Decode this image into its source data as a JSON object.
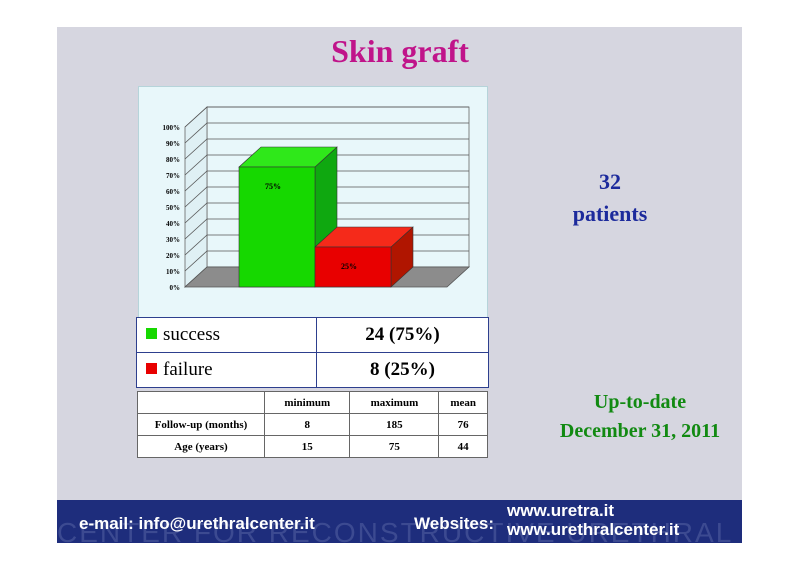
{
  "slide": {
    "title": "Skin graft",
    "patients_line1": "32",
    "patients_line2": "patients",
    "update_line1": "Up-to-date",
    "update_line2": "December 31, 2011"
  },
  "legend": [
    {
      "label": "success",
      "value": "24 (75%)",
      "color": "#16d800"
    },
    {
      "label": "failure",
      "value": "8 (25%)",
      "color": "#e80000"
    }
  ],
  "stats": {
    "headers": [
      "minimum",
      "maximum",
      "mean"
    ],
    "rows": [
      {
        "label": "Follow-up (months)",
        "values": [
          "8",
          "185",
          "76"
        ]
      },
      {
        "label": "Age (years)",
        "values": [
          "15",
          "75",
          "44"
        ]
      }
    ]
  },
  "footer": {
    "email": "e-mail: info@urethralcenter.it",
    "websites_label": "Websites:",
    "site1": "www.uretra.it",
    "site2": "www.urethralcenter.it",
    "watermark": "CENTER FOR RECONSTRUCTIVE URETHRAL SURGERY"
  },
  "chart_data": {
    "type": "bar",
    "categories": [
      "success",
      "failure"
    ],
    "values": [
      75,
      25
    ],
    "data_labels": [
      "75%",
      "25%"
    ],
    "colors": [
      "#16d800",
      "#e80000"
    ],
    "ylim": [
      0,
      100
    ],
    "yticks": [
      "0%",
      "10%",
      "20%",
      "30%",
      "40%",
      "50%",
      "60%",
      "70%",
      "80%",
      "90%",
      "100%"
    ],
    "grid": true
  }
}
